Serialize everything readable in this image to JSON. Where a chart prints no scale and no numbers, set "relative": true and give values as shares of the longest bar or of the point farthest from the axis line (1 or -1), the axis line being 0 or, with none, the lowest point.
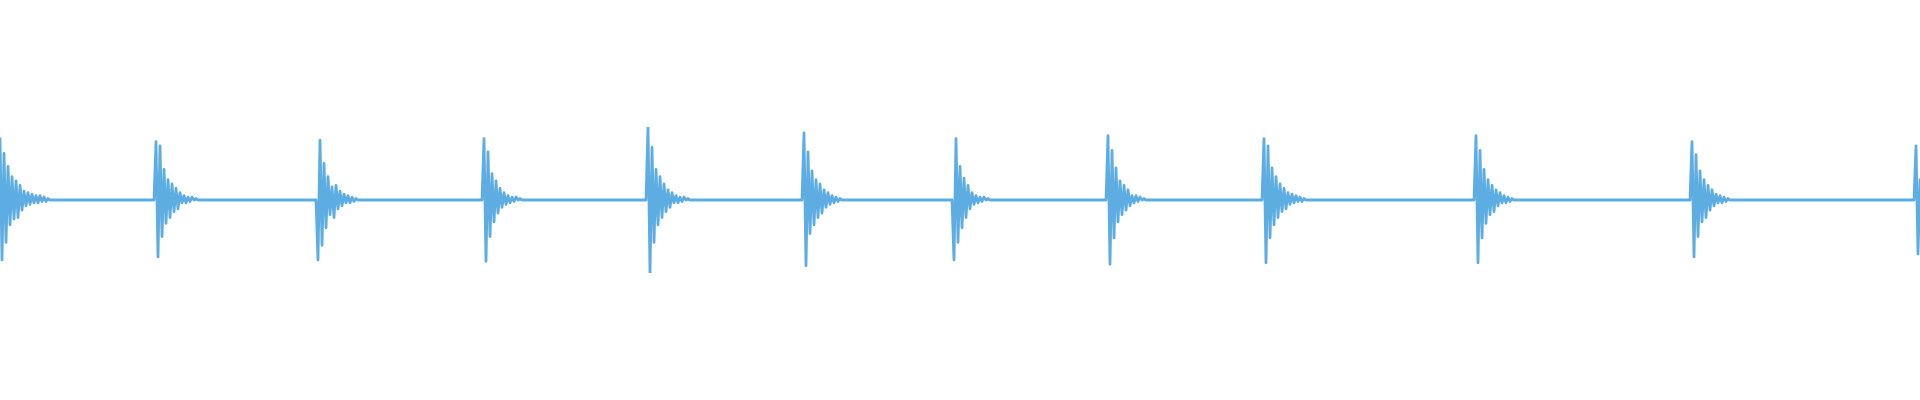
{
  "chart_data": {
    "type": "line",
    "relative": true,
    "color": "#5dade2",
    "marker": "none",
    "line_style": "solid",
    "categories": [
      null,
      null,
      null,
      null,
      null,
      null,
      null,
      null,
      null,
      null,
      null,
      null,
      null,
      null,
      null,
      null,
      null,
      null,
      null,
      null,
      null,
      null,
      null,
      null,
      null,
      null,
      null,
      null,
      null,
      null,
      null,
      null,
      null,
      null,
      null,
      null,
      null,
      null,
      null,
      null,
      null,
      null,
      null,
      null,
      null,
      null,
      null,
      null,
      null,
      null,
      null,
      null,
      null,
      null,
      null,
      null,
      null,
      null,
      null,
      null,
      null,
      null,
      null,
      null,
      null,
      null,
      null,
      null,
      null,
      null,
      null,
      null,
      null,
      null,
      null,
      null,
      null,
      null,
      null,
      null,
      null,
      null,
      null,
      null,
      null,
      null,
      null,
      null,
      null,
      null,
      null,
      null,
      null,
      null,
      null,
      null,
      null,
      null,
      null,
      null,
      null,
      null,
      null,
      null,
      null,
      null,
      null,
      null,
      null,
      null,
      null,
      null,
      null,
      null,
      null,
      null,
      null,
      null,
      null,
      null,
      null,
      null,
      null,
      null,
      null,
      null,
      null,
      null,
      null,
      null,
      null,
      null,
      null,
      null,
      null,
      null,
      null,
      null,
      null,
      null,
      null,
      null,
      null,
      null,
      null,
      null,
      null,
      null,
      null,
      null,
      null,
      null,
      null,
      null,
      null,
      null,
      null,
      null,
      null,
      null,
      null,
      null,
      null,
      null,
      null,
      null,
      null,
      null,
      null,
      null,
      null,
      null,
      null,
      null,
      null,
      null,
      null,
      null,
      null,
      null,
      null,
      null,
      null,
      null,
      null,
      null,
      null,
      null,
      null,
      null,
      null,
      null,
      null,
      null,
      null,
      null,
      null,
      null,
      null,
      null,
      null,
      null,
      null,
      null,
      null,
      null,
      null,
      null,
      null,
      null,
      null,
      null,
      null,
      null,
      null,
      null,
      null,
      null,
      null,
      null,
      null,
      null,
      null,
      null,
      null,
      null,
      null,
      null,
      null,
      null,
      null,
      null,
      null,
      null,
      null,
      null,
      null,
      null,
      null,
      null,
      null,
      null,
      null,
      null,
      null,
      null,
      null,
      null,
      null,
      null,
      null,
      null,
      null,
      null,
      null,
      null,
      null,
      null,
      null,
      null,
      null,
      null,
      null,
      null,
      null,
      null,
      null,
      null,
      null,
      null,
      null,
      null,
      null,
      null,
      null,
      null,
      null,
      null,
      null,
      null,
      null,
      null,
      null,
      null,
      null,
      null,
      null,
      null,
      null,
      null,
      null,
      null,
      null,
      null,
      null,
      null,
      null,
      null,
      null,
      null,
      null,
      null,
      null,
      null,
      null,
      null,
      null,
      null,
      null,
      null,
      null,
      null,
      null,
      null,
      null,
      null,
      null,
      null,
      null,
      null,
      null,
      null,
      null,
      null,
      null,
      null,
      null,
      null,
      null,
      null,
      null,
      null,
      null,
      null,
      null,
      null,
      null,
      null,
      null,
      null,
      null,
      null,
      null,
      null,
      null,
      null,
      null,
      null,
      null,
      null,
      null,
      null,
      null,
      null,
      null,
      null,
      null,
      null,
      null,
      null,
      null,
      null,
      null,
      null,
      null,
      null,
      null,
      null,
      null,
      null,
      null,
      null,
      null,
      null,
      null,
      null,
      null,
      null,
      null,
      null,
      null,
      null,
      null,
      null,
      null,
      null,
      null,
      null,
      null,
      null,
      null,
      null,
      null,
      null,
      null,
      null,
      null,
      null,
      null,
      null,
      null,
      null,
      null,
      null,
      null,
      null,
      null,
      null,
      null,
      null,
      null,
      null,
      null,
      null,
      null,
      null,
      null,
      null,
      null,
      null,
      null,
      null,
      null,
      null,
      null,
      null,
      null,
      null,
      null,
      null,
      null,
      null,
      null,
      null,
      null,
      null,
      null,
      null,
      null,
      null,
      null,
      null,
      null,
      null,
      null,
      null,
      null,
      null,
      null,
      null,
      null,
      null,
      null,
      null,
      null,
      null,
      null,
      null,
      null,
      null,
      null,
      null,
      null,
      null,
      null,
      null,
      null,
      null,
      null,
      null,
      null,
      null,
      null,
      null,
      null,
      null,
      null,
      null,
      null,
      null,
      null,
      null,
      null,
      null,
      null,
      null,
      null,
      null,
      null,
      null,
      null,
      null,
      null,
      null,
      null,
      null,
      null,
      null,
      null,
      null,
      null,
      null,
      null,
      null,
      null,
      null,
      null,
      null,
      null,
      null,
      null,
      null,
      null,
      null,
      null,
      null,
      null,
      null,
      null,
      null,
      null,
      null,
      null,
      null,
      null,
      null,
      null,
      null,
      null,
      null,
      null,
      null,
      null,
      null,
      null,
      null,
      null,
      null,
      null,
      null,
      null,
      null,
      null,
      null,
      null,
      null,
      null,
      null,
      null,
      null,
      null,
      null,
      null,
      null,
      null,
      null,
      null,
      null,
      null,
      null,
      null,
      null,
      null,
      null,
      null,
      null,
      null,
      null,
      null,
      null,
      null,
      null,
      null,
      null,
      null,
      null,
      null,
      null,
      null,
      null,
      null,
      null,
      null,
      null,
      null,
      null,
      null,
      null,
      null,
      null,
      null,
      null,
      null,
      null,
      null,
      null,
      null,
      null,
      null,
      null,
      null,
      null,
      null,
      null,
      null,
      null,
      null,
      null,
      null,
      null,
      null,
      null,
      null,
      null,
      null,
      null,
      null,
      null,
      null,
      null,
      null,
      null,
      null,
      null,
      null,
      null,
      null,
      null,
      null,
      null,
      null,
      null,
      null,
      null,
      null,
      null,
      null,
      null,
      null,
      null,
      null,
      null,
      null,
      null,
      null,
      null,
      null,
      null,
      null,
      null,
      null,
      null,
      null,
      null,
      null,
      null,
      null,
      null,
      null,
      null,
      null,
      null,
      null,
      null,
      null,
      null,
      null,
      null,
      null,
      null,
      null,
      null,
      null,
      null,
      null,
      null,
      null,
      null,
      null,
      null,
      null,
      null,
      null,
      null,
      null,
      null,
      null,
      null,
      null,
      null,
      null,
      null,
      null,
      null,
      null,
      null,
      null,
      null,
      null,
      null,
      null,
      null,
      null,
      null,
      null,
      null,
      null,
      null,
      null,
      null,
      null,
      null,
      null,
      null,
      null,
      null,
      null,
      null,
      null,
      null,
      null,
      null,
      null,
      null,
      null,
      null,
      null,
      null,
      null,
      null,
      null,
      null,
      null,
      null,
      null,
      null,
      null,
      null,
      null,
      null,
      null,
      null,
      null,
      null,
      null,
      null,
      null,
      null,
      null,
      null,
      null,
      null,
      null,
      null,
      null,
      null,
      null,
      null,
      null,
      null,
      null,
      null,
      null,
      null,
      null,
      null,
      null,
      null,
      null,
      null,
      null,
      null,
      null,
      null,
      null,
      null,
      null,
      null,
      null,
      null,
      null,
      null,
      null,
      null,
      null,
      null,
      null,
      null,
      null,
      null,
      null,
      null,
      null,
      null,
      null,
      null,
      null,
      null,
      null,
      null,
      null,
      null,
      null,
      null,
      null,
      null,
      null,
      null,
      null,
      null,
      null,
      null,
      null,
      null,
      null,
      null,
      null,
      null,
      null,
      null,
      null,
      null,
      null,
      null,
      null,
      null,
      null,
      null,
      null,
      null,
      null,
      null,
      null,
      null,
      null,
      null,
      null,
      null,
      null,
      null,
      null,
      null,
      null,
      null,
      null,
      null,
      null,
      null,
      null,
      null,
      null,
      null,
      null,
      null,
      null,
      null,
      null,
      null,
      null,
      null,
      null,
      null,
      null,
      null,
      null,
      null,
      null,
      null,
      null,
      null,
      null,
      null,
      null,
      null,
      null,
      null,
      null,
      null,
      null,
      null,
      null,
      null,
      null,
      null,
      null,
      null,
      null,
      null,
      null,
      null,
      null,
      null,
      null,
      null,
      null,
      null,
      null,
      null,
      null,
      null,
      null,
      null,
      null,
      null,
      null,
      null,
      null,
      null,
      null,
      null,
      null,
      null,
      null,
      null,
      null,
      null,
      null,
      null,
      null,
      null,
      null,
      null,
      null,
      null,
      null,
      null,
      null,
      null,
      null,
      null,
      null,
      null,
      null,
      null,
      null,
      null,
      null,
      null,
      null,
      null,
      null,
      null,
      null,
      null,
      null,
      null,
      null,
      null,
      null,
      null,
      null,
      null,
      null,
      null,
      null,
      null,
      null,
      null,
      null,
      null,
      null
    ],
    "values": [
      0.92,
      0.09,
      0.82,
      0.21,
      0.73,
      0.33,
      0.66,
      0.37,
      0.63,
      0.38,
      0.6,
      0.43,
      0.56,
      0.46,
      0.55,
      0.47,
      0.54,
      0.48,
      0.53,
      0.48,
      0.53,
      0.49,
      0.52,
      0.49,
      0.51,
      0.5,
      0.5,
      0.5,
      0.5,
      0.5,
      0.5,
      0.5,
      0.5,
      0.5,
      0.5,
      0.5,
      0.5,
      0.5,
      0.5,
      0.5,
      0.5,
      0.5,
      0.5,
      0.5,
      0.5,
      0.5,
      0.5,
      0.5,
      0.5,
      0.5,
      0.5,
      0.5,
      0.5,
      0.5,
      0.5,
      0.5,
      0.5,
      0.5,
      0.5,
      0.5,
      0.5,
      0.5,
      0.5,
      0.5,
      0.5,
      0.5,
      0.5,
      0.5,
      0.5,
      0.5,
      0.5,
      0.5,
      0.5,
      0.5,
      0.5,
      0.5,
      0.5,
      0.5,
      0.9,
      0.11,
      0.87,
      0.25,
      0.71,
      0.34,
      0.64,
      0.38,
      0.61,
      0.42,
      0.58,
      0.44,
      0.55,
      0.48,
      0.53,
      0.48,
      0.52,
      0.49,
      0.52,
      0.5,
      0.51,
      0.5,
      0.5,
      0.5,
      0.5,
      0.5,
      0.5,
      0.5,
      0.5,
      0.5,
      0.5,
      0.5,
      0.5,
      0.5,
      0.5,
      0.5,
      0.5,
      0.5,
      0.5,
      0.5,
      0.5,
      0.5,
      0.5,
      0.5,
      0.5,
      0.5,
      0.5,
      0.5,
      0.5,
      0.5,
      0.5,
      0.5,
      0.5,
      0.5,
      0.5,
      0.5,
      0.5,
      0.5,
      0.5,
      0.5,
      0.5,
      0.5,
      0.5,
      0.5,
      0.5,
      0.5,
      0.5,
      0.5,
      0.5,
      0.5,
      0.5,
      0.5,
      0.5,
      0.5,
      0.5,
      0.5,
      0.5,
      0.5,
      0.5,
      0.5,
      0.5,
      0.09,
      0.91,
      0.19,
      0.75,
      0.31,
      0.66,
      0.4,
      0.59,
      0.38,
      0.6,
      0.44,
      0.56,
      0.46,
      0.54,
      0.48,
      0.53,
      0.48,
      0.52,
      0.49,
      0.51,
      0.5,
      0.5,
      0.5,
      0.5,
      0.5,
      0.5,
      0.5,
      0.5,
      0.5,
      0.5,
      0.5,
      0.5,
      0.5,
      0.5,
      0.5,
      0.5,
      0.5,
      0.5,
      0.5,
      0.5,
      0.5,
      0.5,
      0.5,
      0.5,
      0.5,
      0.5,
      0.5,
      0.5,
      0.5,
      0.5,
      0.5,
      0.5,
      0.5,
      0.5,
      0.5,
      0.5,
      0.5,
      0.5,
      0.5,
      0.5,
      0.5,
      0.5,
      0.5,
      0.5,
      0.5,
      0.5,
      0.5,
      0.5,
      0.5,
      0.5,
      0.5,
      0.5,
      0.5,
      0.5,
      0.5,
      0.5,
      0.5,
      0.5,
      0.5,
      0.5,
      0.5,
      0.5,
      0.5,
      0.92,
      0.08,
      0.83,
      0.25,
      0.68,
      0.35,
      0.63,
      0.41,
      0.58,
      0.45,
      0.55,
      0.47,
      0.53,
      0.48,
      0.52,
      0.49,
      0.52,
      0.5,
      0.51,
      0.5,
      0.5,
      0.5,
      0.5,
      0.5,
      0.5,
      0.5,
      0.5,
      0.5,
      0.5,
      0.5,
      0.5,
      0.5,
      0.5,
      0.5,
      0.5,
      0.5,
      0.5,
      0.5,
      0.5,
      0.5,
      0.5,
      0.5,
      0.5,
      0.5,
      0.5,
      0.5,
      0.5,
      0.5,
      0.5,
      0.5,
      0.5,
      0.5,
      0.5,
      0.5,
      0.5,
      0.5,
      0.5,
      0.5,
      0.5,
      0.5,
      0.5,
      0.5,
      0.5,
      0.5,
      0.5,
      0.5,
      0.5,
      0.5,
      0.5,
      0.5,
      0.5,
      0.5,
      0.5,
      0.5,
      0.5,
      0.5,
      0.5,
      0.5,
      0.5,
      0.5,
      0.5,
      0.5,
      1,
      0,
      0.86,
      0.21,
      0.71,
      0.33,
      0.66,
      0.38,
      0.61,
      0.42,
      0.57,
      0.45,
      0.55,
      0.48,
      0.53,
      0.48,
      0.52,
      0.49,
      0.52,
      0.5,
      0.51,
      0.5,
      0.5,
      0.5,
      0.5,
      0.5,
      0.5,
      0.5,
      0.5,
      0.5,
      0.5,
      0.5,
      0.5,
      0.5,
      0.5,
      0.5,
      0.5,
      0.5,
      0.5,
      0.5,
      0.5,
      0.5,
      0.5,
      0.5,
      0.5,
      0.5,
      0.5,
      0.5,
      0.5,
      0.5,
      0.5,
      0.5,
      0.5,
      0.5,
      0.5,
      0.5,
      0.5,
      0.5,
      0.5,
      0.5,
      0.5,
      0.5,
      0.5,
      0.5,
      0.5,
      0.5,
      0.5,
      0.5,
      0.5,
      0.5,
      0.5,
      0.5,
      0.5,
      0.5,
      0.5,
      0.5,
      0.5,
      0.5,
      0.96,
      0.05,
      0.83,
      0.27,
      0.7,
      0.33,
      0.64,
      0.38,
      0.61,
      0.41,
      0.57,
      0.45,
      0.55,
      0.47,
      0.53,
      0.48,
      0.52,
      0.49,
      0.51,
      0.5,
      0.5,
      0.5,
      0.5,
      0.5,
      0.5,
      0.5,
      0.5,
      0.5,
      0.5,
      0.5,
      0.5,
      0.5,
      0.5,
      0.5,
      0.5,
      0.5,
      0.5,
      0.5,
      0.5,
      0.5,
      0.5,
      0.5,
      0.5,
      0.5,
      0.5,
      0.5,
      0.5,
      0.5,
      0.5,
      0.5,
      0.5,
      0.5,
      0.5,
      0.5,
      0.5,
      0.5,
      0.5,
      0.5,
      0.5,
      0.5,
      0.5,
      0.5,
      0.5,
      0.5,
      0.5,
      0.5,
      0.5,
      0.5,
      0.5,
      0.5,
      0.5,
      0.5,
      0.5,
      0.5,
      0.5,
      0.09,
      0.92,
      0.21,
      0.73,
      0.31,
      0.65,
      0.38,
      0.6,
      0.44,
      0.55,
      0.47,
      0.53,
      0.48,
      0.52,
      0.49,
      0.52,
      0.5,
      0.51,
      0.5,
      0.5,
      0.5,
      0.5,
      0.5,
      0.5,
      0.5,
      0.5,
      0.5,
      0.5,
      0.5,
      0.5,
      0.5,
      0.5,
      0.5,
      0.5,
      0.5,
      0.5,
      0.5,
      0.5,
      0.5,
      0.5,
      0.5,
      0.5,
      0.5,
      0.5,
      0.5,
      0.5,
      0.5,
      0.5,
      0.5,
      0.5,
      0.5,
      0.5,
      0.5,
      0.5,
      0.5,
      0.5,
      0.5,
      0.5,
      0.5,
      0.5,
      0.5,
      0.5,
      0.5,
      0.5,
      0.5,
      0.5,
      0.5,
      0.5,
      0.5,
      0.5,
      0.5,
      0.5,
      0.5,
      0.5,
      0.5,
      0.5,
      0.5,
      0.94,
      0.06,
      0.84,
      0.24,
      0.72,
      0.35,
      0.63,
      0.4,
      0.6,
      0.43,
      0.57,
      0.46,
      0.53,
      0.48,
      0.53,
      0.49,
      0.52,
      0.5,
      0.51,
      0.5,
      0.5,
      0.5,
      0.5,
      0.5,
      0.5,
      0.5,
      0.5,
      0.5,
      0.5,
      0.5,
      0.5,
      0.5,
      0.5,
      0.5,
      0.5,
      0.5,
      0.5,
      0.5,
      0.5,
      0.5,
      0.5,
      0.5,
      0.5,
      0.5,
      0.5,
      0.5,
      0.5,
      0.5,
      0.5,
      0.5,
      0.5,
      0.5,
      0.5,
      0.5,
      0.5,
      0.5,
      0.5,
      0.5,
      0.5,
      0.5,
      0.5,
      0.5,
      0.5,
      0.5,
      0.5,
      0.5,
      0.5,
      0.5,
      0.5,
      0.5,
      0.5,
      0.5,
      0.5,
      0.5,
      0.5,
      0.5,
      0.5,
      0.5,
      0.92,
      0.07,
      0.87,
      0.24,
      0.72,
      0.33,
      0.66,
      0.38,
      0.61,
      0.42,
      0.58,
      0.44,
      0.55,
      0.47,
      0.54,
      0.48,
      0.53,
      0.49,
      0.52,
      0.49,
      0.51,
      0.5,
      0.5,
      0.5,
      0.5,
      0.5,
      0.5,
      0.5,
      0.5,
      0.5,
      0.5,
      0.5,
      0.5,
      0.5,
      0.5,
      0.5,
      0.5,
      0.5,
      0.5,
      0.5,
      0.5,
      0.5,
      0.5,
      0.5,
      0.5,
      0.5,
      0.5,
      0.5,
      0.5,
      0.5,
      0.5,
      0.5,
      0.5,
      0.5,
      0.5,
      0.5,
      0.5,
      0.5,
      0.5,
      0.5,
      0.5,
      0.5,
      0.5,
      0.5,
      0.5,
      0.5,
      0.5,
      0.5,
      0.5,
      0.5,
      0.5,
      0.5,
      0.5,
      0.5,
      0.5,
      0.5,
      0.5,
      0.5,
      0.5,
      0.5,
      0.5,
      0.5,
      0.5,
      0.5,
      0.5,
      0.5,
      0.5,
      0.5,
      0.5,
      0.5,
      0.5,
      0.5,
      0.5,
      0.5,
      0.5,
      0.5,
      0.5,
      0.5,
      0.5,
      0.5,
      0.5,
      0.5,
      0.5,
      0.5,
      0.5,
      0.5,
      0.94,
      0.07,
      0.84,
      0.24,
      0.71,
      0.34,
      0.64,
      0.4,
      0.6,
      0.42,
      0.57,
      0.46,
      0.55,
      0.48,
      0.53,
      0.48,
      0.52,
      0.49,
      0.51,
      0.5,
      0.5,
      0.5,
      0.5,
      0.5,
      0.5,
      0.5,
      0.5,
      0.5,
      0.5,
      0.5,
      0.5,
      0.5,
      0.5,
      0.5,
      0.5,
      0.5,
      0.5,
      0.5,
      0.5,
      0.5,
      0.5,
      0.5,
      0.5,
      0.5,
      0.5,
      0.5,
      0.5,
      0.5,
      0.5,
      0.5,
      0.5,
      0.5,
      0.5,
      0.5,
      0.5,
      0.5,
      0.5,
      0.5,
      0.5,
      0.5,
      0.5,
      0.5,
      0.5,
      0.5,
      0.5,
      0.5,
      0.5,
      0.5,
      0.5,
      0.5,
      0.5,
      0.5,
      0.5,
      0.5,
      0.5,
      0.5,
      0.5,
      0.5,
      0.5,
      0.5,
      0.5,
      0.5,
      0.5,
      0.5,
      0.5,
      0.5,
      0.5,
      0.5,
      0.5,
      0.5,
      0.5,
      0.5,
      0.5,
      0.5,
      0.5,
      0.5,
      0.5,
      0.5,
      0.5,
      0.5,
      0.5,
      0.5,
      0.5,
      0.5,
      0.5,
      0.5,
      0.5,
      0.5,
      0.9,
      0.11,
      0.81,
      0.25,
      0.7,
      0.35,
      0.64,
      0.38,
      0.6,
      0.43,
      0.57,
      0.46,
      0.54,
      0.48,
      0.53,
      0.48,
      0.52,
      0.49,
      0.51,
      0.5,
      0.5,
      0.5,
      0.5,
      0.5,
      0.5,
      0.5,
      0.5,
      0.5,
      0.5,
      0.5,
      0.5,
      0.5,
      0.5,
      0.5,
      0.5,
      0.5,
      0.5,
      0.5,
      0.5,
      0.5,
      0.5,
      0.5,
      0.5,
      0.5,
      0.5,
      0.5,
      0.5,
      0.5,
      0.5,
      0.5,
      0.5,
      0.5,
      0.5,
      0.5,
      0.5,
      0.5,
      0.5,
      0.5,
      0.5,
      0.5,
      0.5,
      0.5,
      0.5,
      0.5,
      0.5,
      0.5,
      0.5,
      0.5,
      0.5,
      0.5,
      0.5,
      0.5,
      0.5,
      0.5,
      0.5,
      0.5,
      0.5,
      0.5,
      0.5,
      0.5,
      0.5,
      0.5,
      0.5,
      0.5,
      0.5,
      0.5,
      0.5,
      0.5,
      0.5,
      0.5,
      0.5,
      0.5,
      0.5,
      0.5,
      0.5,
      0.5,
      0.5,
      0.5,
      0.5,
      0.5,
      0.5,
      0.5,
      0.5,
      0.5,
      0.5,
      0.5,
      0.5,
      0.5,
      0.5,
      0.5,
      0.5,
      0.5,
      0.87,
      0.13,
      0.64
    ]
  }
}
